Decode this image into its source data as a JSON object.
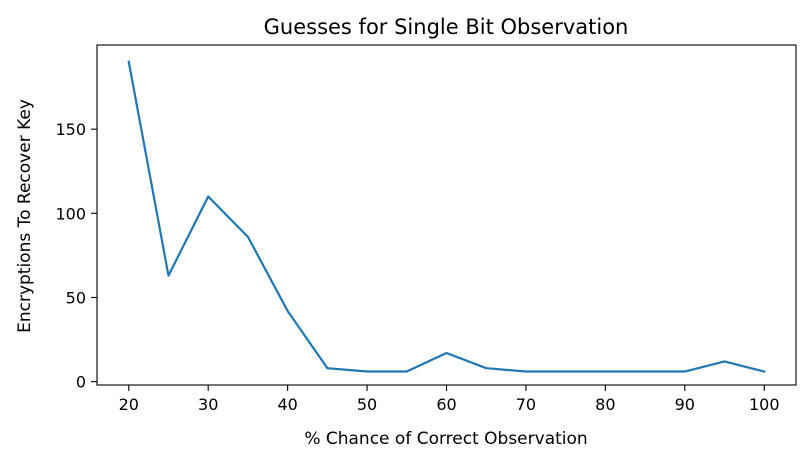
{
  "chart_data": {
    "type": "line",
    "title": "Guesses for Single Bit Observation",
    "xlabel": "% Chance of Correct Observation",
    "ylabel": "Encryptions To Recover Key",
    "xlim": [
      16,
      104
    ],
    "ylim": [
      -2,
      200
    ],
    "xticks": [
      20,
      30,
      40,
      50,
      60,
      70,
      80,
      90,
      100
    ],
    "yticks": [
      0,
      50,
      100,
      150
    ],
    "grid": false,
    "line_color": "#1f77b4",
    "series": [
      {
        "x": [
          20,
          25,
          30,
          35,
          40,
          45,
          50,
          55,
          60,
          65,
          70,
          75,
          80,
          85,
          90,
          95,
          100
        ],
        "y": [
          190,
          63,
          110,
          86,
          42,
          8,
          6,
          6,
          17,
          8,
          6,
          6,
          6,
          6,
          6,
          12,
          6
        ]
      }
    ]
  }
}
